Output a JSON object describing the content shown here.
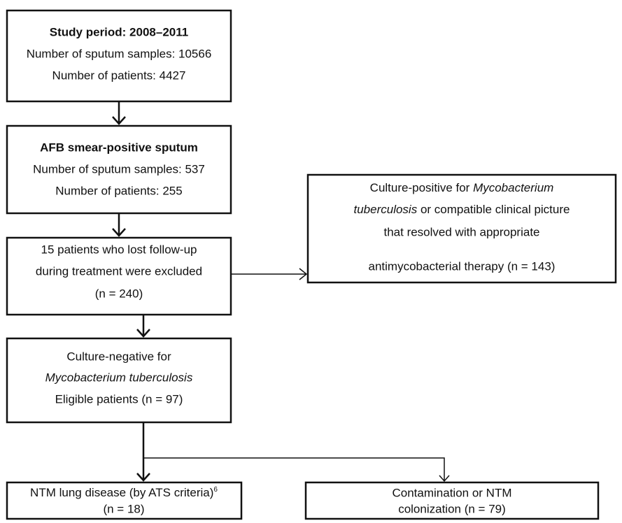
{
  "nodes": [
    {
      "lines": [
        [
          "Study period: 2008–2011"
        ],
        [
          "Number of sputum samples: 10566"
        ],
        [
          "Number of patients: 4427"
        ]
      ]
    },
    {
      "lines": [
        [
          "AFB smear-positive sputum"
        ],
        [
          "Number of sputum samples: 537"
        ],
        [
          "Number of patients: 255"
        ]
      ]
    },
    {
      "lines": [
        [
          "15 patients who lost follow-up"
        ],
        [
          "during treatment were excluded"
        ],
        [
          "(n = 240)"
        ]
      ]
    },
    {
      "lines": [
        [
          "Culture-positive for ",
          "Mycobacterium"
        ],
        [
          "tuberculosis",
          " or compatible clinical picture"
        ],
        [
          "that resolved with appropriate"
        ],
        [
          "antimycobacterial therapy (n = 143)"
        ]
      ]
    },
    {
      "lines": [
        [
          "Culture-negative for"
        ],
        [
          "Mycobacterium tuberculosis"
        ],
        [
          "Eligible patients (n = 97)"
        ]
      ]
    },
    {
      "lines": [
        [
          "NTM lung disease (by ATS criteria)",
          "6"
        ],
        [
          "(n = 18)"
        ]
      ]
    },
    {
      "lines": [
        [
          "Contamination or NTM"
        ],
        [
          "colonization (n = 79)"
        ]
      ]
    }
  ]
}
